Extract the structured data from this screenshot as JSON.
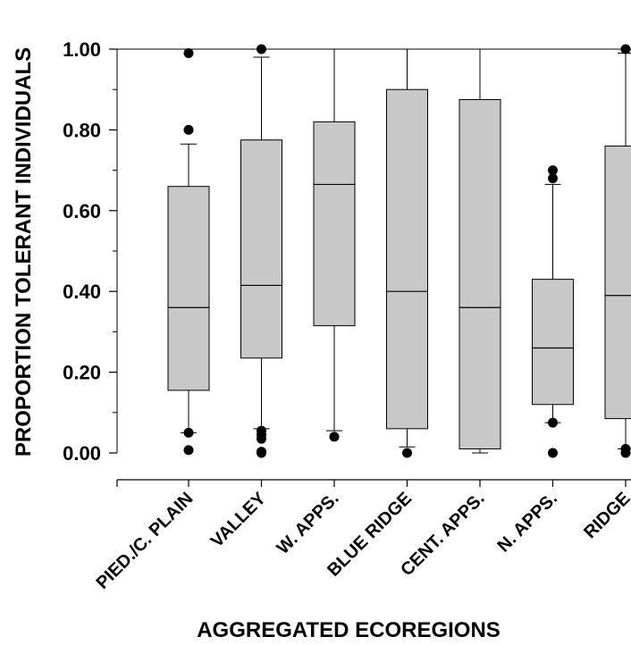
{
  "chart_data": {
    "type": "boxplot",
    "xlabel": "AGGREGATED ECOREGIONS",
    "ylabel": "PROPORTION TOLERANT INDIVIDUALS",
    "ylim": [
      0,
      1
    ],
    "yticks": [
      "0.00",
      "0.20",
      "0.40",
      "0.60",
      "0.80",
      "1.00"
    ],
    "grid": false,
    "categories": [
      "PIED./C. PLAIN",
      "VALLEY",
      "W. APPS.",
      "BLUE RIDGE",
      "CENT. APPS.",
      "N. APPS.",
      "RIDGE"
    ],
    "boxes": [
      {
        "whisker_low": 0.05,
        "q1": 0.155,
        "median": 0.36,
        "q3": 0.66,
        "whisker_high": 0.765,
        "outliers": [
          0.99,
          0.8,
          0.05,
          0.007
        ]
      },
      {
        "whisker_low": 0.06,
        "q1": 0.235,
        "median": 0.415,
        "q3": 0.775,
        "whisker_high": 0.98,
        "outliers": [
          1.0,
          0.055,
          0.045,
          0.035,
          0.003,
          0.0
        ]
      },
      {
        "whisker_low": 0.055,
        "q1": 0.315,
        "median": 0.665,
        "q3": 0.82,
        "whisker_high": 1.0,
        "outliers": [
          0.04
        ]
      },
      {
        "whisker_low": 0.015,
        "q1": 0.06,
        "median": 0.4,
        "q3": 0.9,
        "whisker_high": 1.0,
        "outliers": [
          0.0
        ]
      },
      {
        "whisker_low": 0.0,
        "q1": 0.01,
        "median": 0.36,
        "q3": 0.875,
        "whisker_high": 1.0,
        "outliers": []
      },
      {
        "whisker_low": 0.075,
        "q1": 0.12,
        "median": 0.26,
        "q3": 0.43,
        "whisker_high": 0.665,
        "outliers": [
          0.7,
          0.68,
          0.075,
          0.0
        ]
      },
      {
        "whisker_low": 0.01,
        "q1": 0.085,
        "median": 0.39,
        "q3": 0.76,
        "whisker_high": 0.99,
        "outliers": [
          1.0,
          0.01,
          0.0
        ]
      }
    ],
    "colors": {
      "box_fill": "#c8c8c8",
      "stroke": "#000000",
      "outlier": "#000000"
    }
  }
}
